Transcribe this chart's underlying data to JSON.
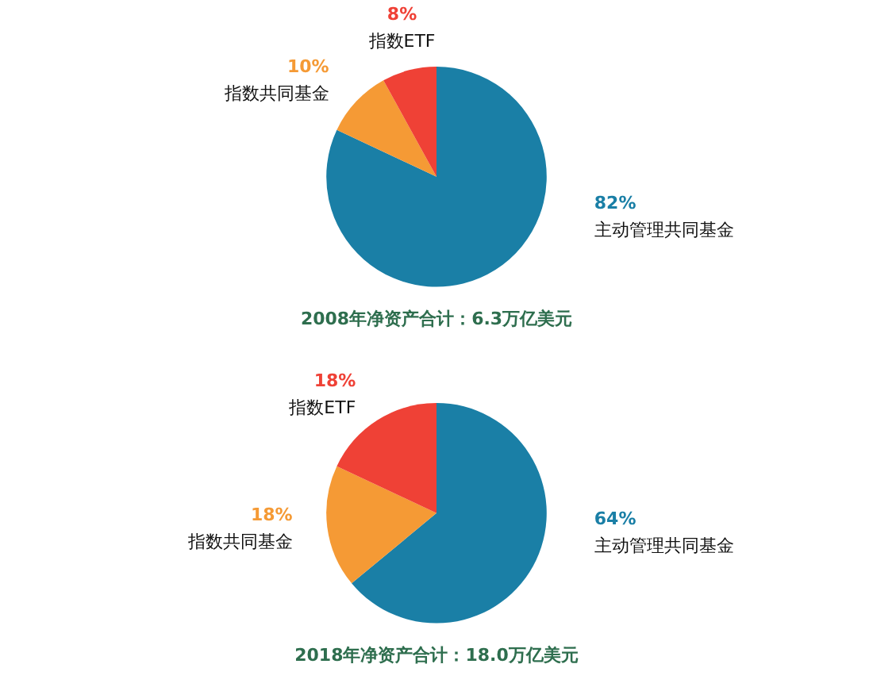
{
  "chart_data": [
    {
      "type": "pie",
      "title": "2008年净资产合计：6.3万亿美元",
      "categories": [
        "主动管理共同基金",
        "指数共同基金",
        "指数ETF"
      ],
      "values": [
        82,
        10,
        8
      ],
      "value_labels": [
        "82%",
        "10%",
        "8%"
      ],
      "colors": [
        "#1a7fa6",
        "#f59a35",
        "#ef4136"
      ],
      "legend": false
    },
    {
      "type": "pie",
      "title": "2018年净资产合计：18.0万亿美元",
      "categories": [
        "主动管理共同基金",
        "指数共同基金",
        "指数ETF"
      ],
      "values": [
        64,
        18,
        18
      ],
      "value_labels": [
        "64%",
        "18%",
        "18%"
      ],
      "colors": [
        "#1a7fa6",
        "#f59a35",
        "#ef4136"
      ],
      "legend": false
    }
  ]
}
